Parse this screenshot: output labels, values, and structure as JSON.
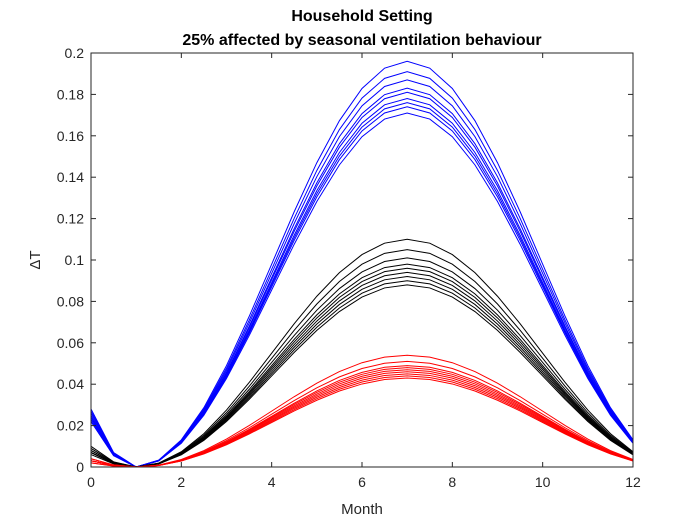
{
  "chart_data": {
    "type": "line",
    "title": "Household Setting",
    "subtitle": "25% affected by seasonal ventilation behaviour",
    "xlabel": "Month",
    "ylabel": "ΔT",
    "xlim": [
      0,
      12
    ],
    "ylim": [
      0,
      0.2
    ],
    "xticks": [
      0,
      2,
      4,
      6,
      8,
      10,
      12
    ],
    "yticks": [
      0,
      0.02,
      0.04,
      0.06,
      0.08,
      0.1,
      0.12,
      0.14,
      0.16,
      0.18,
      0.2
    ],
    "x": [
      0,
      0.5,
      1,
      1.5,
      2,
      2.5,
      3,
      3.5,
      4,
      4.5,
      5,
      5.5,
      6,
      6.5,
      7,
      7.5,
      8,
      8.5,
      9,
      9.5,
      10,
      10.5,
      11,
      11.5,
      12
    ],
    "grid": false,
    "legend": "none",
    "series_groups": [
      {
        "color": "#0000ff",
        "peaks": [
          0.196,
          0.191,
          0.187,
          0.183,
          0.181,
          0.178,
          0.176,
          0.174,
          0.171
        ],
        "start_values": [
          0.028,
          0.027,
          0.026,
          0.025,
          0.024,
          0.024,
          0.023,
          0.022,
          0.022
        ]
      },
      {
        "color": "#000000",
        "peaks": [
          0.11,
          0.105,
          0.101,
          0.098,
          0.096,
          0.094,
          0.092,
          0.09,
          0.088
        ],
        "start_values": [
          0.01,
          0.009,
          0.009,
          0.008,
          0.008,
          0.007,
          0.007,
          0.007,
          0.006
        ]
      },
      {
        "color": "#ff0000",
        "peaks": [
          0.054,
          0.051,
          0.049,
          0.048,
          0.047,
          0.046,
          0.045,
          0.044,
          0.043
        ],
        "start_values": [
          0.004,
          0.004,
          0.003,
          0.003,
          0.003,
          0.003,
          0.003,
          0.002,
          0.002
        ]
      }
    ],
    "minimum": {
      "x": 1,
      "y": 0
    },
    "peak_x": 7
  }
}
